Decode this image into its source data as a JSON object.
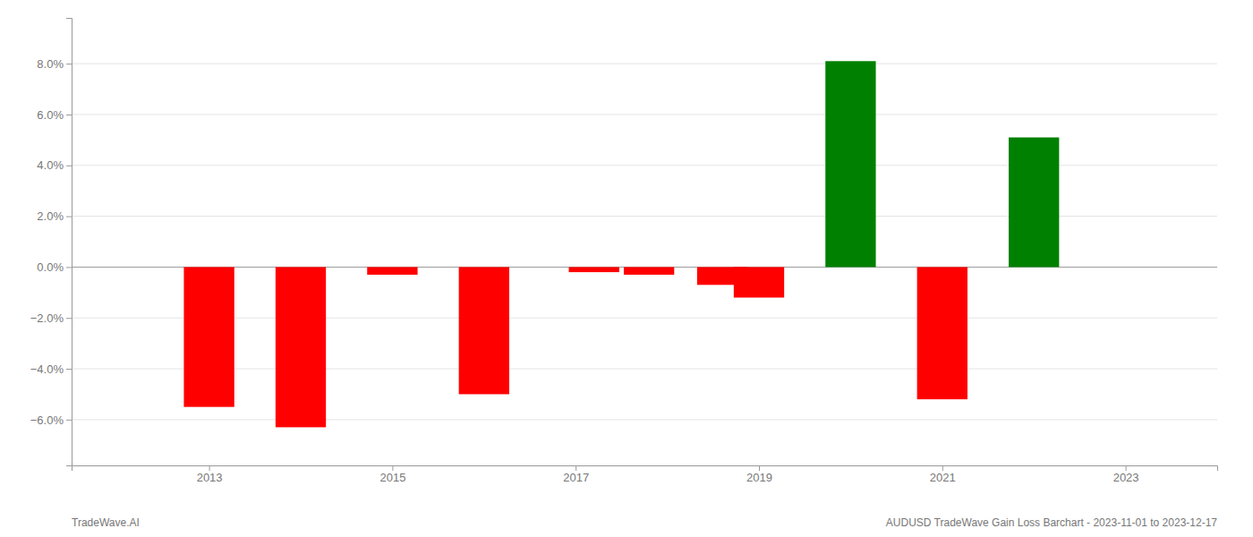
{
  "chart_data": {
    "type": "bar",
    "x": [
      2013,
      2014,
      2015,
      2016,
      2017.2,
      2017.8,
      2018.6,
      2019.0,
      2020.0,
      2021.0,
      2022.0
    ],
    "values": [
      -0.055,
      -0.063,
      -0.003,
      -0.05,
      -0.002,
      -0.003,
      -0.007,
      -0.012,
      0.081,
      -0.052,
      0.051
    ],
    "colors": [
      "#ff0000",
      "#ff0000",
      "#ff0000",
      "#ff0000",
      "#ff0000",
      "#ff0000",
      "#ff0000",
      "#ff0000",
      "#008000",
      "#ff0000",
      "#008000"
    ],
    "xlim": [
      2011.5,
      2024.0
    ],
    "ylim": [
      -0.078,
      0.098
    ],
    "xticks": [
      2013,
      2015,
      2017,
      2019,
      2021,
      2023
    ],
    "yticks": [
      {
        "value": -0.06,
        "label": "−6.0%"
      },
      {
        "value": -0.04,
        "label": "−4.0%"
      },
      {
        "value": -0.02,
        "label": "−2.0%"
      },
      {
        "value": 0.0,
        "label": "0.0%"
      },
      {
        "value": 0.02,
        "label": "2.0%"
      },
      {
        "value": 0.04,
        "label": "4.0%"
      },
      {
        "value": 0.06,
        "label": "6.0%"
      },
      {
        "value": 0.08,
        "label": "8.0%"
      }
    ],
    "grid": true,
    "annotations": [
      "TradeWave.AI",
      "AUDUSD TradeWave Gain Loss Barchart - 2023-11-01 to 2023-12-17"
    ]
  }
}
